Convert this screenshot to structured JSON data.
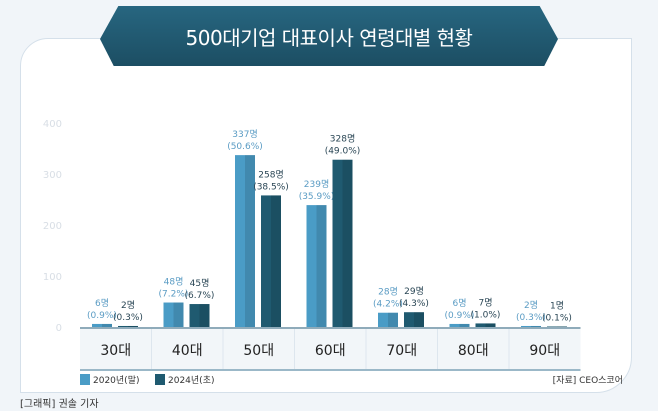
{
  "title": "500대기업 대표이사 연령대별 현황",
  "chart_data": {
    "type": "bar",
    "title": "500대기업 대표이사 연령대별 현황",
    "categories": [
      "30대",
      "40대",
      "50대",
      "60대",
      "70대",
      "80대",
      "90대"
    ],
    "series": [
      {
        "name": "2020년(말)",
        "color": "#4a9cc6",
        "values": [
          6,
          48,
          337,
          239,
          28,
          6,
          2
        ],
        "labels": [
          "6명",
          "48명",
          "337명",
          "239명",
          "28명",
          "6명",
          "2명"
        ],
        "pct": [
          "(0.9%)",
          "(7.2%)",
          "(50.6%)",
          "(35.9%)",
          "(4.2%)",
          "(0.9%)",
          "(0.3%)"
        ]
      },
      {
        "name": "2024년(초)",
        "color": "#1f5a70",
        "values": [
          2,
          45,
          258,
          328,
          29,
          7,
          1
        ],
        "labels": [
          "2명",
          "45명",
          "258명",
          "328명",
          "29명",
          "7명",
          "1명"
        ],
        "pct": [
          "(0.3%)",
          "(6.7%)",
          "(38.5%)",
          "(49.0%)",
          "(4.3%)",
          "(1.0%)",
          "(0.1%)"
        ]
      }
    ],
    "yticks": [
      0,
      100,
      200,
      300,
      400
    ],
    "ylim": [
      0,
      400
    ],
    "grid": false,
    "legend": "bottom-left"
  },
  "source": "[자료] CEO스코어",
  "credit": "[그래픽] 권솔 기자"
}
